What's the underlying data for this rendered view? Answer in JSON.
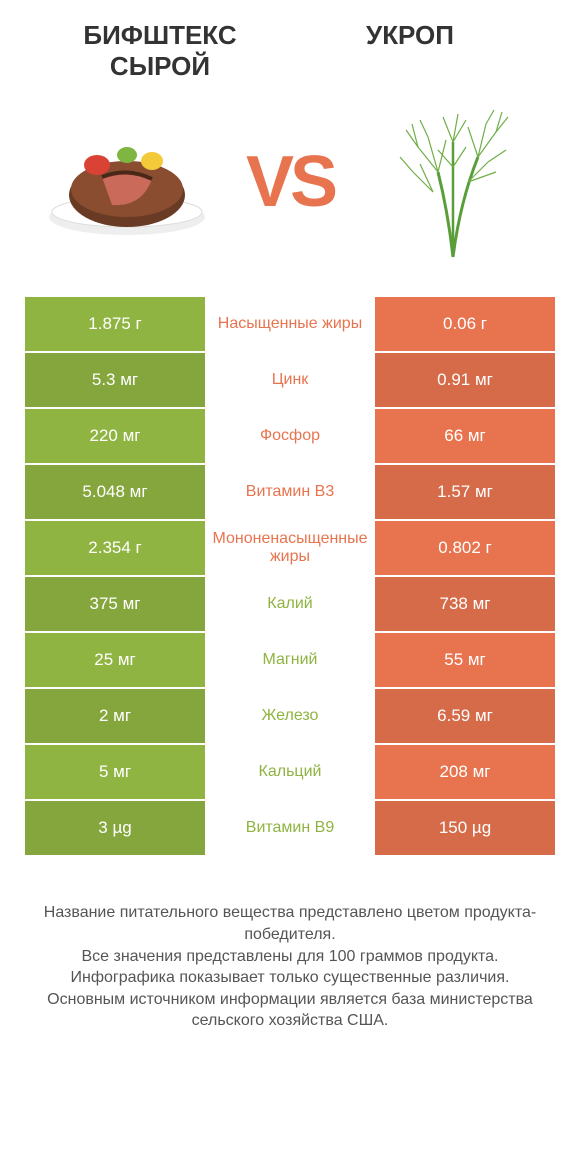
{
  "header": {
    "left_title": "БИФШТЕКС СЫРОЙ",
    "right_title": "УКРОП",
    "vs": "VS"
  },
  "colors": {
    "left_bg": "#8fb441",
    "right_bg": "#e8744f",
    "mid_left_text": "#e8744f",
    "mid_right_text": "#8fb441",
    "row_alt_darken": 0.92
  },
  "table": {
    "rows": [
      {
        "left": "1.875 г",
        "label": "Насыщенные жиры",
        "right": "0.06 г",
        "winner": "left"
      },
      {
        "left": "5.3 мг",
        "label": "Цинк",
        "right": "0.91 мг",
        "winner": "left"
      },
      {
        "left": "220 мг",
        "label": "Фосфор",
        "right": "66 мг",
        "winner": "left"
      },
      {
        "left": "5.048 мг",
        "label": "Витамин B3",
        "right": "1.57 мг",
        "winner": "left"
      },
      {
        "left": "2.354 г",
        "label": "Мононенасыщенные жиры",
        "right": "0.802 г",
        "winner": "left"
      },
      {
        "left": "375 мг",
        "label": "Калий",
        "right": "738 мг",
        "winner": "right"
      },
      {
        "left": "25 мг",
        "label": "Магний",
        "right": "55 мг",
        "winner": "right"
      },
      {
        "left": "2 мг",
        "label": "Железо",
        "right": "6.59 мг",
        "winner": "right"
      },
      {
        "left": "5 мг",
        "label": "Кальций",
        "right": "208 мг",
        "winner": "right"
      },
      {
        "left": "3 µg",
        "label": "Витамин B9",
        "right": "150 µg",
        "winner": "right"
      }
    ]
  },
  "footer": {
    "lines": [
      "Название питательного вещества представлено цветом продукта-победителя.",
      "Все значения представлены для 100 граммов продукта.",
      "Инфографика показывает только существенные различия.",
      "Основным источником информации является база министерства сельского хозяйства США."
    ]
  }
}
